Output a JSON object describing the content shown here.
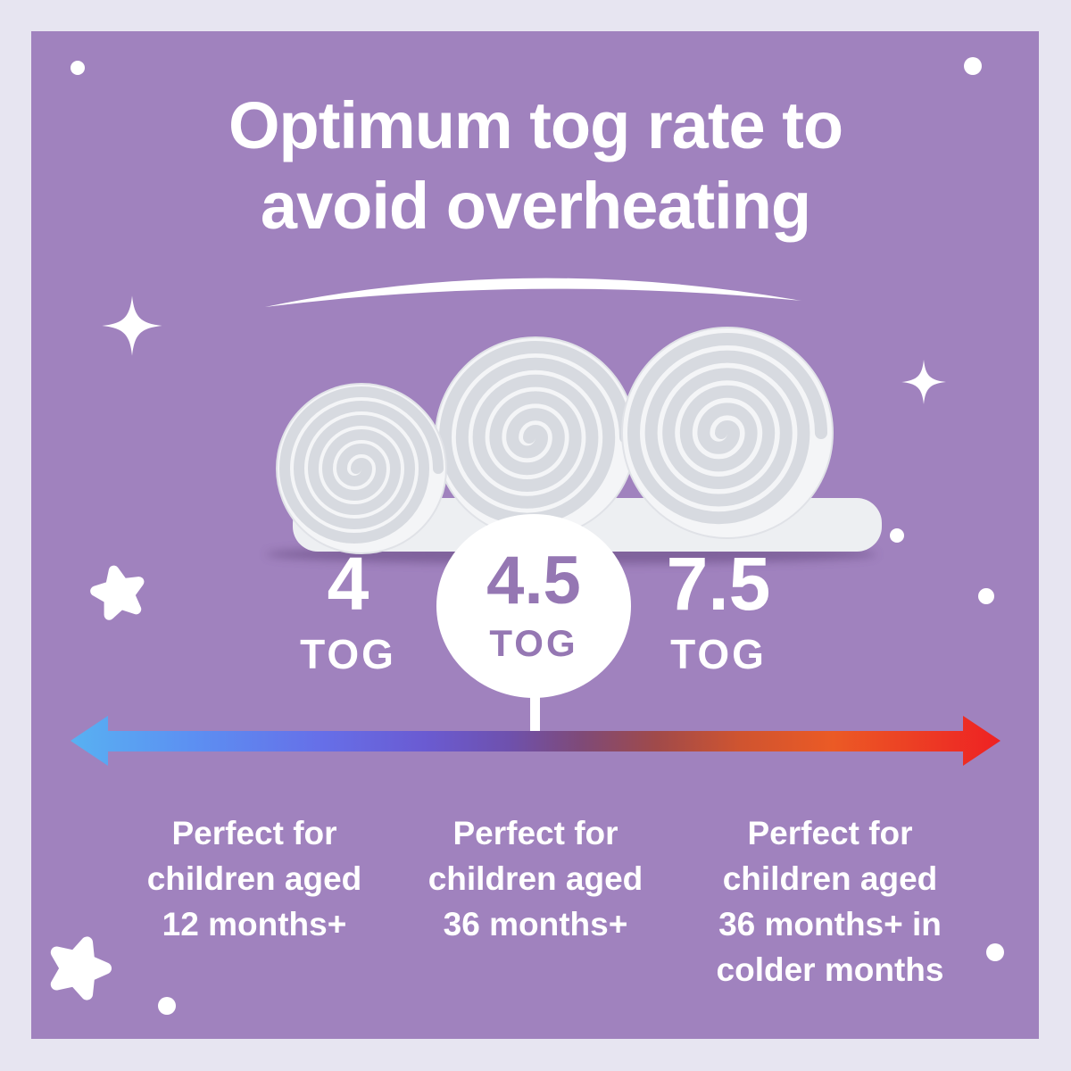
{
  "title": {
    "line1": "Optimum tog rate to",
    "line2": "avoid overheating"
  },
  "hero": {
    "alt": "Three rolled white duvets"
  },
  "togs": [
    {
      "value": "4",
      "unit": "TOG",
      "highlighted": false,
      "description": [
        "Perfect for",
        "children aged",
        "12 months+"
      ]
    },
    {
      "value": "4.5",
      "unit": "TOG",
      "highlighted": true,
      "description": [
        "Perfect for",
        "children aged",
        "36 months+"
      ]
    },
    {
      "value": "7.5",
      "unit": "TOG",
      "highlighted": false,
      "description": [
        "Perfect for",
        "children aged",
        "36 months+ in",
        "colder months"
      ]
    }
  ],
  "scale": {
    "type": "gradient-arrow",
    "gradient_colors": [
      "#58b1f2",
      "#666fe8",
      "#6e51ae",
      "#7f4a77",
      "#a04a4a",
      "#eb5a25",
      "#ee2123"
    ]
  },
  "colors": {
    "frame": "#e7e5f1",
    "panel": "#a082be",
    "text": "#ffffff",
    "badge_text": "#9577b3"
  },
  "decorations": [
    "dot",
    "sparkle-icon",
    "star-icon"
  ]
}
